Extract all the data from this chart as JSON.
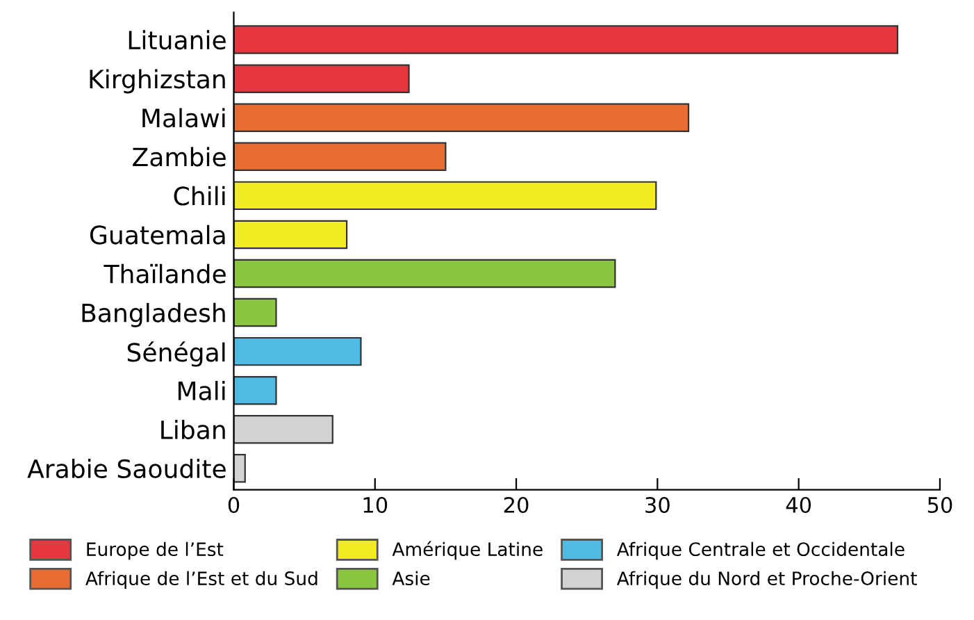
{
  "chart_data": {
    "type": "bar",
    "orientation": "horizontal",
    "categories": [
      "Lituanie",
      "Kirghizstan",
      "Malawi",
      "Zambie",
      "Chili",
      "Guatemala",
      "Thaïlande",
      "Bangladesh",
      "Sénégal",
      "Mali",
      "Liban",
      "Arabie Saoudite"
    ],
    "series": [
      {
        "name": "Europe de l’Est",
        "color": "#e63741",
        "values": [
          47.0,
          12.4,
          null,
          null,
          null,
          null,
          null,
          null,
          null,
          null,
          null,
          null
        ]
      },
      {
        "name": "Afrique de l’Est et du Sud",
        "color": "#e86d33",
        "values": [
          null,
          null,
          32.2,
          15.0,
          null,
          null,
          null,
          null,
          null,
          null,
          null,
          null
        ]
      },
      {
        "name": "Amérique Latine",
        "color": "#f3eb22",
        "values": [
          null,
          null,
          null,
          null,
          29.9,
          8.0,
          null,
          null,
          null,
          null,
          null,
          null
        ]
      },
      {
        "name": "Asie",
        "color": "#8bc640",
        "values": [
          null,
          null,
          null,
          null,
          null,
          null,
          27.0,
          3.0,
          null,
          null,
          null,
          null
        ]
      },
      {
        "name": "Afrique Centrale et Occidentale",
        "color": "#4fbbe3",
        "values": [
          null,
          null,
          null,
          null,
          null,
          null,
          null,
          null,
          9.0,
          3.0,
          null,
          null
        ]
      },
      {
        "name": "Afrique du Nord et Proche-Orient",
        "color": "#d1d3d4",
        "values": [
          null,
          null,
          null,
          null,
          null,
          null,
          null,
          null,
          null,
          null,
          7.0,
          0.8
        ]
      }
    ],
    "xlim": [
      0,
      50
    ],
    "xticks": [
      0,
      10,
      20,
      30,
      40,
      50
    ],
    "grid": false,
    "legend": "bottom"
  }
}
